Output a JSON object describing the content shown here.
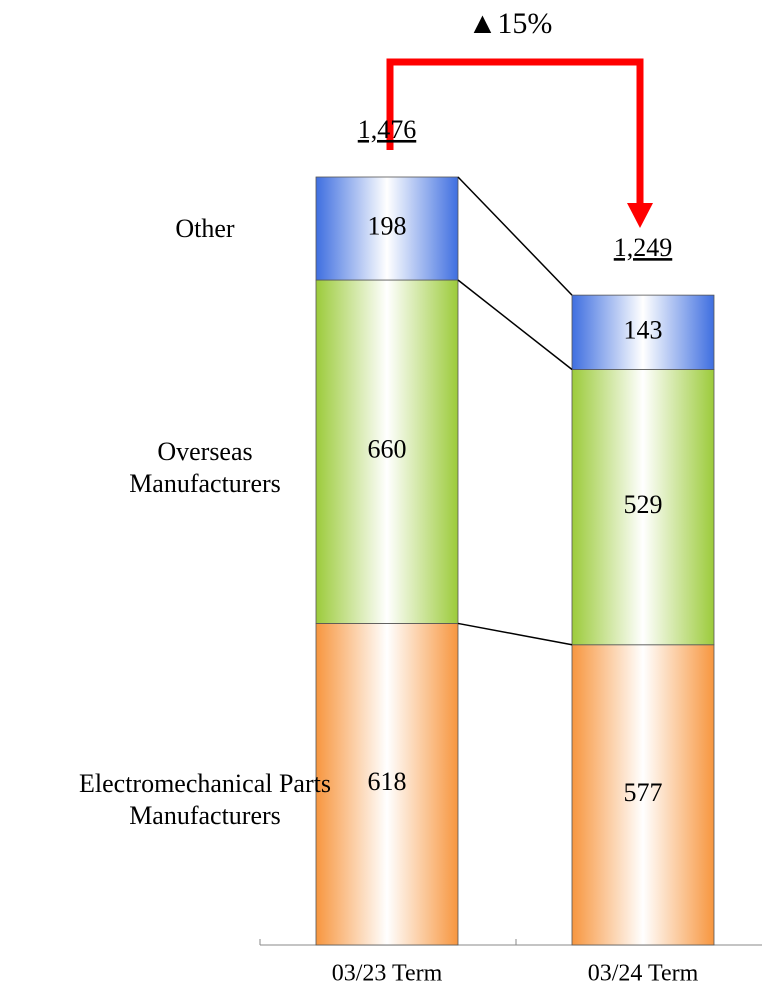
{
  "chart_data": {
    "type": "stacked_bar",
    "annotation": "▲15%",
    "categories": [
      "03/23 Term",
      "03/24 Term"
    ],
    "series": [
      {
        "name": "Electromechanical Parts Manufacturers",
        "color": "#f7963f",
        "values": [
          618,
          577
        ]
      },
      {
        "name": "Overseas Manufacturers",
        "color": "#9ccb3b",
        "values": [
          660,
          529
        ]
      },
      {
        "name": "Other",
        "color": "#3f6fe0",
        "values": [
          198,
          143
        ]
      }
    ],
    "totals": [
      1476,
      1249
    ],
    "total_labels": [
      "1,476",
      "1,249"
    ]
  }
}
